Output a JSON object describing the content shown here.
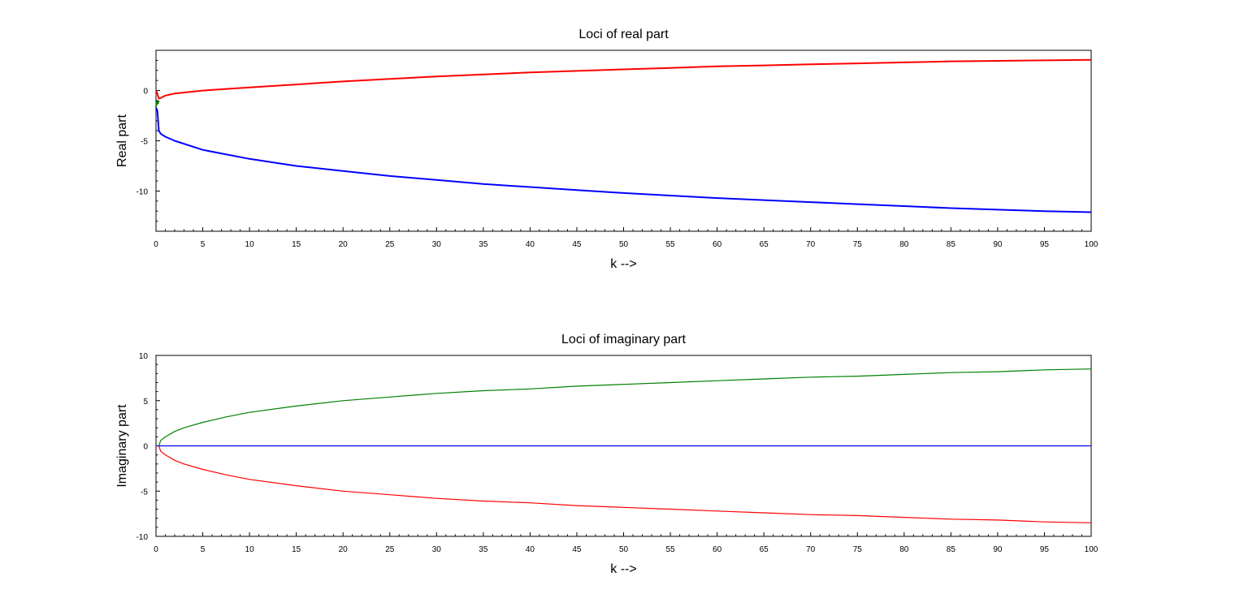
{
  "chart_data": [
    {
      "type": "line",
      "title": "Loci of real part",
      "xlabel": "k -->",
      "ylabel": "Real part",
      "xlim": [
        0,
        100
      ],
      "ylim": [
        -14,
        4
      ],
      "xticks": [
        0,
        5,
        10,
        15,
        20,
        25,
        30,
        35,
        40,
        45,
        50,
        55,
        60,
        65,
        70,
        75,
        80,
        85,
        90,
        95,
        100
      ],
      "yticks": [
        0,
        -5,
        -10
      ],
      "grid": false,
      "series": [
        {
          "color": "#ff0000",
          "x": [
            0,
            0.15,
            0.3,
            0.5,
            1,
            2,
            5,
            10,
            15,
            20,
            25,
            30,
            35,
            40,
            45,
            50,
            55,
            60,
            65,
            70,
            75,
            80,
            85,
            90,
            95,
            100
          ],
          "y": [
            0,
            -0.3,
            -0.8,
            -0.75,
            -0.5,
            -0.3,
            0.0,
            0.3,
            0.6,
            0.9,
            1.15,
            1.4,
            1.6,
            1.8,
            1.95,
            2.1,
            2.25,
            2.4,
            2.5,
            2.6,
            2.7,
            2.8,
            2.9,
            2.95,
            3.0,
            3.05
          ]
        },
        {
          "color": "#0000ff",
          "x": [
            0,
            0.15,
            0.3,
            0.5,
            1,
            2,
            5,
            10,
            15,
            20,
            25,
            30,
            35,
            40,
            45,
            50,
            55,
            60,
            65,
            70,
            75,
            80,
            85,
            90,
            95,
            100
          ],
          "y": [
            -1.7,
            -2.0,
            -4.0,
            -4.3,
            -4.6,
            -5.0,
            -5.9,
            -6.8,
            -7.5,
            -8.0,
            -8.5,
            -8.9,
            -9.3,
            -9.6,
            -9.9,
            -10.2,
            -10.45,
            -10.7,
            -10.9,
            -11.1,
            -11.3,
            -11.5,
            -11.7,
            -11.85,
            -12.0,
            -12.1
          ]
        },
        {
          "color": "#008000",
          "x": [
            0,
            0.1,
            0.2,
            0.3
          ],
          "y": [
            -1.6,
            -1.1,
            -1.3,
            -1.0
          ]
        }
      ]
    },
    {
      "type": "line",
      "title": "Loci of imaginary part",
      "xlabel": "k -->",
      "ylabel": "Imaginary part",
      "xlim": [
        0,
        100
      ],
      "ylim": [
        -10,
        10
      ],
      "xticks": [
        0,
        5,
        10,
        15,
        20,
        25,
        30,
        35,
        40,
        45,
        50,
        55,
        60,
        65,
        70,
        75,
        80,
        85,
        90,
        95,
        100
      ],
      "yticks": [
        10,
        5,
        0,
        -5,
        -10
      ],
      "grid": false,
      "series": [
        {
          "color": "#008000",
          "x": [
            0.3,
            0.5,
            1,
            2,
            3,
            5,
            7.5,
            10,
            15,
            20,
            25,
            30,
            35,
            40,
            45,
            50,
            55,
            60,
            65,
            70,
            75,
            80,
            85,
            90,
            95,
            100
          ],
          "y": [
            0,
            0.6,
            1.0,
            1.6,
            2.0,
            2.6,
            3.2,
            3.7,
            4.4,
            5.0,
            5.4,
            5.8,
            6.1,
            6.3,
            6.6,
            6.8,
            7.0,
            7.2,
            7.4,
            7.6,
            7.7,
            7.9,
            8.1,
            8.2,
            8.4,
            8.5
          ]
        },
        {
          "color": "#0000ff",
          "x": [
            0,
            100
          ],
          "y": [
            0,
            0
          ]
        },
        {
          "color": "#ff0000",
          "x": [
            0.3,
            0.5,
            1,
            2,
            3,
            5,
            7.5,
            10,
            15,
            20,
            25,
            30,
            35,
            40,
            45,
            50,
            55,
            60,
            65,
            70,
            75,
            80,
            85,
            90,
            95,
            100
          ],
          "y": [
            0,
            -0.6,
            -1.0,
            -1.6,
            -2.0,
            -2.6,
            -3.2,
            -3.7,
            -4.4,
            -5.0,
            -5.4,
            -5.8,
            -6.1,
            -6.3,
            -6.6,
            -6.8,
            -7.0,
            -7.2,
            -7.4,
            -7.6,
            -7.7,
            -7.9,
            -8.1,
            -8.2,
            -8.4,
            -8.5
          ]
        }
      ]
    }
  ]
}
